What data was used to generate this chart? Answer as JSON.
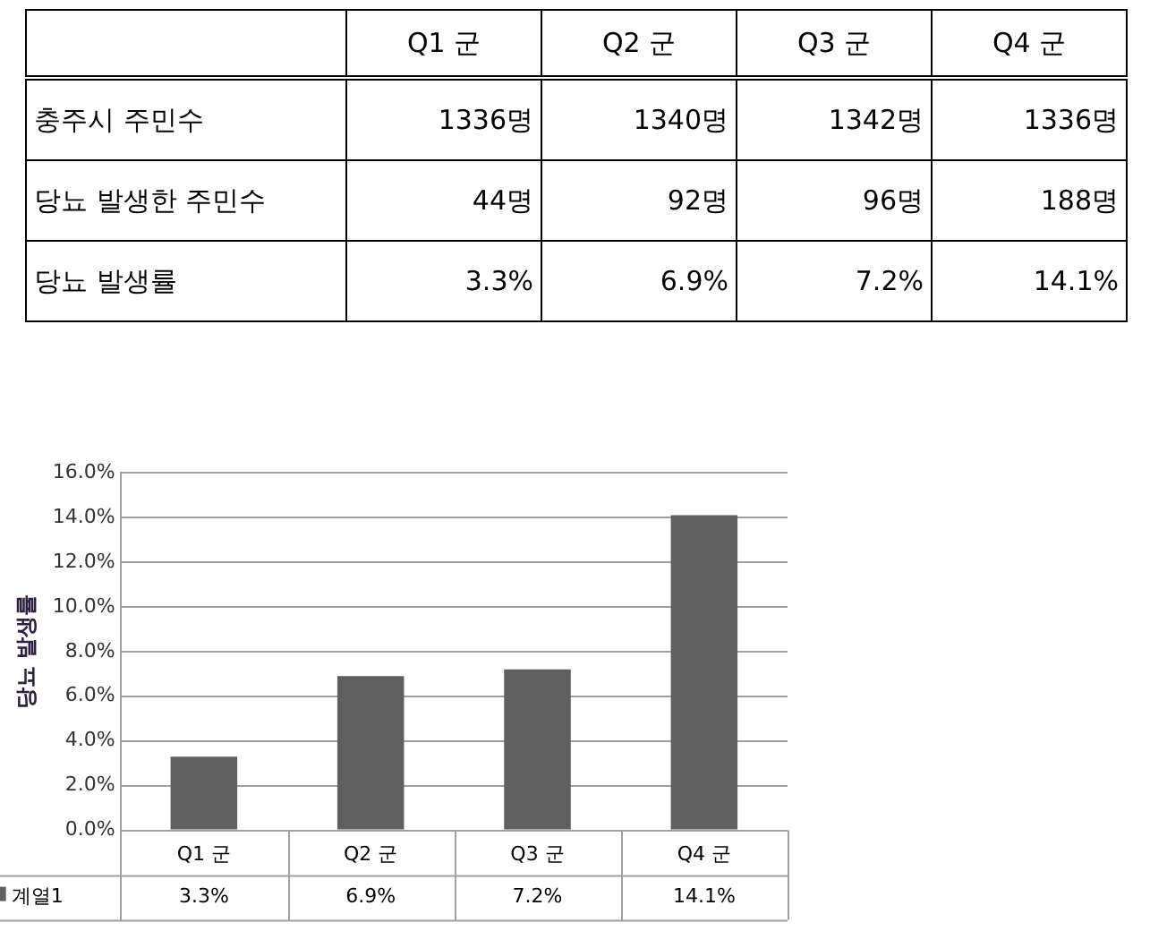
{
  "chart_data": [
    {
      "type": "other",
      "categories": [
        "Q1 군",
        "Q2 군",
        "Q3 군",
        "Q4 군"
      ],
      "y_categories": [
        "충주시 주민수",
        "당뇨 발생한 주민수",
        "당뇨 발생률"
      ],
      "cell_labels": [
        [
          "1336명",
          "1340명",
          "1342명",
          "1336명"
        ],
        [
          "44명",
          "92명",
          "96명",
          "188명"
        ],
        [
          "3.3%",
          "6.9%",
          "7.2%",
          "14.1%"
        ]
      ]
    },
    {
      "type": "bar",
      "ylabel": "당뇨 발생률",
      "categories": [
        "Q1 군",
        "Q2 군",
        "Q3 군",
        "Q4 군"
      ],
      "series": [
        {
          "name": "계열1",
          "color": "#5f5f5f",
          "values": [
            3.3,
            6.9,
            7.2,
            14.1
          ],
          "value_labels": [
            "3.3%",
            "6.9%",
            "7.2%",
            "14.1%"
          ]
        }
      ],
      "ylim": [
        0,
        16
      ],
      "yticks": [
        {
          "value": 0,
          "label": "0.0%"
        },
        {
          "value": 2,
          "label": "2.0%"
        },
        {
          "value": 4,
          "label": "4.0%"
        },
        {
          "value": 6,
          "label": "6.0%"
        },
        {
          "value": 8,
          "label": "8.0%"
        },
        {
          "value": 10,
          "label": "10.0%"
        },
        {
          "value": 12,
          "label": "12.0%"
        },
        {
          "value": 14,
          "label": "14.0%"
        },
        {
          "value": 16,
          "label": "16.0%"
        }
      ],
      "grid": "y",
      "legend": "bottom",
      "data_labels": true
    }
  ]
}
